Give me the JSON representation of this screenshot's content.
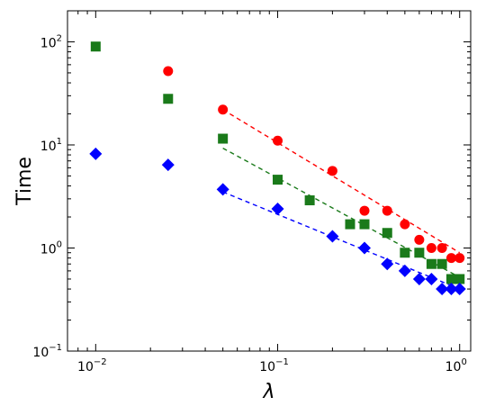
{
  "chart_data": {
    "type": "scatter",
    "title": "",
    "xlabel": "λ",
    "ylabel": "Time",
    "xscale": "log",
    "yscale": "log",
    "xlim": [
      0.007,
      1.15
    ],
    "ylim": [
      0.1,
      200
    ],
    "grid": false,
    "legend": "none",
    "x_ticks": [
      {
        "value": 0.01,
        "base": "10",
        "exp": "−2"
      },
      {
        "value": 0.1,
        "base": "10",
        "exp": "−1"
      },
      {
        "value": 1,
        "base": "10",
        "exp": "0"
      }
    ],
    "y_ticks": [
      {
        "value": 0.1,
        "base": "10",
        "exp": "−1"
      },
      {
        "value": 1,
        "base": "10",
        "exp": "0"
      },
      {
        "value": 10,
        "base": "10",
        "exp": "1"
      },
      {
        "value": 100,
        "base": "10",
        "exp": "2"
      }
    ],
    "series": [
      {
        "marker": "circle",
        "color": "#ff0000",
        "points": [
          [
            0.025,
            52
          ],
          [
            0.05,
            22
          ],
          [
            0.1,
            11
          ],
          [
            0.2,
            5.6
          ],
          [
            0.3,
            2.3
          ],
          [
            0.4,
            2.3
          ],
          [
            0.5,
            1.7
          ],
          [
            0.6,
            1.2
          ],
          [
            0.7,
            1.0
          ],
          [
            0.8,
            1.0
          ],
          [
            0.9,
            0.8
          ],
          [
            1.0,
            0.8
          ]
        ],
        "fit": {
          "from": [
            0.05,
            22
          ],
          "to": [
            1.0,
            0.9
          ]
        }
      },
      {
        "marker": "square",
        "color": "#1a7a1a",
        "points": [
          [
            0.01,
            90
          ],
          [
            0.025,
            28
          ],
          [
            0.05,
            11.5
          ],
          [
            0.1,
            4.6
          ],
          [
            0.15,
            2.9
          ],
          [
            0.25,
            1.7
          ],
          [
            0.3,
            1.7
          ],
          [
            0.4,
            1.4
          ],
          [
            0.5,
            0.9
          ],
          [
            0.6,
            0.9
          ],
          [
            0.7,
            0.7
          ],
          [
            0.8,
            0.7
          ],
          [
            0.9,
            0.5
          ],
          [
            1.0,
            0.5
          ]
        ],
        "fit": {
          "from": [
            0.05,
            9.3
          ],
          "to": [
            1.0,
            0.52
          ]
        }
      },
      {
        "marker": "diamond",
        "color": "#0000ff",
        "points": [
          [
            0.01,
            8.2
          ],
          [
            0.025,
            6.4
          ],
          [
            0.05,
            3.7
          ],
          [
            0.1,
            2.4
          ],
          [
            0.2,
            1.3
          ],
          [
            0.3,
            1.0
          ],
          [
            0.4,
            0.7
          ],
          [
            0.5,
            0.6
          ],
          [
            0.6,
            0.5
          ],
          [
            0.7,
            0.5
          ],
          [
            0.8,
            0.4
          ],
          [
            0.9,
            0.4
          ],
          [
            1.0,
            0.4
          ]
        ],
        "fit": {
          "from": [
            0.05,
            3.5
          ],
          "to": [
            1.0,
            0.4
          ]
        }
      }
    ]
  }
}
